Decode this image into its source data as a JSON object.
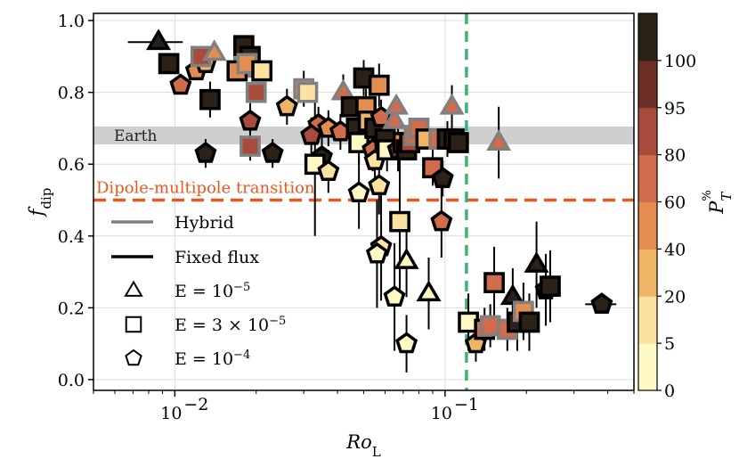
{
  "chart_data": {
    "type": "scatter",
    "xscale": "log",
    "xlim": [
      0.005,
      0.5
    ],
    "ylim": [
      -0.03,
      1.02
    ],
    "xlabel": "Ro_L",
    "ylabel": "f_dip",
    "yticks": [
      0.0,
      0.2,
      0.4,
      0.6,
      0.8,
      1.0
    ],
    "ytick_labels": [
      "0.0",
      "0.2",
      "0.4",
      "0.6",
      "0.8",
      "1.0"
    ],
    "xticks": [
      0.01,
      0.1
    ],
    "xtick_labels": [
      {
        "base": "10",
        "exp": "−2"
      },
      {
        "base": "10",
        "exp": "−1"
      }
    ],
    "grid": true,
    "annotations": {
      "earth_band": {
        "label": "Earth",
        "y_range": [
          0.655,
          0.705
        ]
      },
      "transition": {
        "label": "Dipole-multipole transition",
        "y": 0.5,
        "color": "#e8571e"
      },
      "vertical_line": {
        "x": 0.12,
        "color": "#3cb371"
      }
    },
    "colorbar": {
      "label": "P_T^%",
      "ticks": [
        "0",
        "5",
        "20",
        "40",
        "60",
        "80",
        "95",
        "100"
      ],
      "colors": [
        "#fff9c6",
        "#fce2a0",
        "#f0b466",
        "#e38e50",
        "#d06c4b",
        "#a84a3c",
        "#6d2f27",
        "#2b2117"
      ]
    },
    "legend": {
      "items": [
        {
          "label": "Hybrid",
          "kind": "line",
          "color": "#808080"
        },
        {
          "label": "Fixed flux",
          "kind": "line",
          "color": "#000000"
        },
        {
          "label": "E = 10^−5",
          "kind": "triangle"
        },
        {
          "label": "E = 3 × 10^−5",
          "kind": "square"
        },
        {
          "label": "E = 10^−4",
          "kind": "pentagon"
        }
      ]
    },
    "points": [
      {
        "x": 0.0087,
        "y": 0.94,
        "m": "t",
        "c": 7,
        "e": "k",
        "xe": 0.002,
        "ye": 0.02
      },
      {
        "x": 0.0095,
        "y": 0.88,
        "m": "s",
        "c": 7,
        "e": "k"
      },
      {
        "x": 0.012,
        "y": 0.86,
        "m": "p",
        "c": 3,
        "e": "k"
      },
      {
        "x": 0.013,
        "y": 0.88,
        "m": "p",
        "c": 2,
        "e": "k"
      },
      {
        "x": 0.0125,
        "y": 0.9,
        "m": "s",
        "c": 5,
        "e": "g"
      },
      {
        "x": 0.014,
        "y": 0.91,
        "m": "t",
        "c": 3,
        "e": "g"
      },
      {
        "x": 0.0105,
        "y": 0.82,
        "m": "p",
        "c": 4,
        "e": "k"
      },
      {
        "x": 0.0135,
        "y": 0.78,
        "m": "s",
        "c": 7,
        "e": "k",
        "ye": 0.05
      },
      {
        "x": 0.013,
        "y": 0.63,
        "m": "p",
        "c": 7,
        "e": "k",
        "ye": 0.04
      },
      {
        "x": 0.018,
        "y": 0.93,
        "m": "s",
        "c": 7,
        "e": "k"
      },
      {
        "x": 0.019,
        "y": 0.9,
        "m": "s",
        "c": 7,
        "e": "k"
      },
      {
        "x": 0.018,
        "y": 0.87,
        "m": "s",
        "c": 4,
        "e": "g"
      },
      {
        "x": 0.017,
        "y": 0.86,
        "m": "s",
        "c": 3,
        "e": "k"
      },
      {
        "x": 0.0185,
        "y": 0.88,
        "m": "s",
        "c": 3,
        "e": "g"
      },
      {
        "x": 0.021,
        "y": 0.86,
        "m": "s",
        "c": 1,
        "e": "k"
      },
      {
        "x": 0.02,
        "y": 0.8,
        "m": "s",
        "c": 5,
        "e": "g"
      },
      {
        "x": 0.019,
        "y": 0.72,
        "m": "p",
        "c": 5,
        "e": "k",
        "ye": 0.05
      },
      {
        "x": 0.019,
        "y": 0.65,
        "m": "s",
        "c": 5,
        "e": "g",
        "ye": 0.04
      },
      {
        "x": 0.023,
        "y": 0.63,
        "m": "p",
        "c": 7,
        "e": "k",
        "ye": 0.04
      },
      {
        "x": 0.026,
        "y": 0.76,
        "m": "p",
        "c": 2,
        "e": "k",
        "ye": 0.05
      },
      {
        "x": 0.03,
        "y": 0.81,
        "m": "s",
        "c": 3,
        "e": "g",
        "ye": 0.05
      },
      {
        "x": 0.031,
        "y": 0.8,
        "m": "s",
        "c": 1,
        "e": "g"
      },
      {
        "x": 0.034,
        "y": 0.71,
        "m": "p",
        "c": 4,
        "e": "k",
        "ye": 0.05
      },
      {
        "x": 0.032,
        "y": 0.68,
        "m": "p",
        "c": 5,
        "e": "k",
        "ye": 0.05
      },
      {
        "x": 0.037,
        "y": 0.7,
        "m": "p",
        "c": 3,
        "e": "k",
        "ye": 0.05
      },
      {
        "x": 0.035,
        "y": 0.62,
        "m": "p",
        "c": 7,
        "e": "k",
        "ye": 0.06
      },
      {
        "x": 0.033,
        "y": 0.6,
        "m": "s",
        "c": 0,
        "e": "k",
        "ye": 0.2
      },
      {
        "x": 0.037,
        "y": 0.58,
        "m": "p",
        "c": 1,
        "e": "k",
        "ye": 0.06
      },
      {
        "x": 0.041,
        "y": 0.69,
        "m": "p",
        "c": 4,
        "e": "k",
        "ye": 0.05
      },
      {
        "x": 0.042,
        "y": 0.8,
        "m": "t",
        "c": 4,
        "e": "g",
        "ye": 0.05
      },
      {
        "x": 0.045,
        "y": 0.76,
        "m": "s",
        "c": 7,
        "e": "k"
      },
      {
        "x": 0.047,
        "y": 0.7,
        "m": "s",
        "c": 7,
        "e": "k"
      },
      {
        "x": 0.048,
        "y": 0.66,
        "m": "s",
        "c": 0,
        "e": "k",
        "ye": 0.06
      },
      {
        "x": 0.05,
        "y": 0.84,
        "m": "s",
        "c": 7,
        "e": "k",
        "ye": 0.05
      },
      {
        "x": 0.051,
        "y": 0.76,
        "m": "s",
        "c": 3,
        "e": "k",
        "ye": 0.05
      },
      {
        "x": 0.052,
        "y": 0.72,
        "m": "s",
        "c": 2,
        "e": "k",
        "ye": 0.06
      },
      {
        "x": 0.055,
        "y": 0.7,
        "m": "s",
        "c": 7,
        "e": "k",
        "ye": 0.05
      },
      {
        "x": 0.057,
        "y": 0.82,
        "m": "s",
        "c": 3,
        "e": "k",
        "ye": 0.06
      },
      {
        "x": 0.058,
        "y": 0.73,
        "m": "p",
        "c": 4,
        "e": "k",
        "ye": 0.05
      },
      {
        "x": 0.054,
        "y": 0.64,
        "m": "p",
        "c": 4,
        "e": "k",
        "ye": 0.06
      },
      {
        "x": 0.055,
        "y": 0.61,
        "m": "p",
        "c": 1,
        "e": "k",
        "ye": 0.08
      },
      {
        "x": 0.048,
        "y": 0.52,
        "m": "p",
        "c": 0,
        "e": "k",
        "ye": 0.1
      },
      {
        "x": 0.057,
        "y": 0.54,
        "m": "p",
        "c": 1,
        "e": "k",
        "ye": 0.08
      },
      {
        "x": 0.06,
        "y": 0.67,
        "m": "s",
        "c": 7,
        "e": "k",
        "ye": 0.05
      },
      {
        "x": 0.061,
        "y": 0.64,
        "m": "s",
        "c": 0,
        "e": "k",
        "ye": 0.06
      },
      {
        "x": 0.065,
        "y": 0.72,
        "m": "t",
        "c": 4,
        "e": "g",
        "ye": 0.05
      },
      {
        "x": 0.066,
        "y": 0.76,
        "m": "t",
        "c": 4,
        "e": "g"
      },
      {
        "x": 0.067,
        "y": 0.64,
        "m": "p",
        "c": 6,
        "e": "k",
        "ye": 0.06
      },
      {
        "x": 0.07,
        "y": 0.66,
        "m": "s",
        "c": 3,
        "e": "k"
      },
      {
        "x": 0.072,
        "y": 0.64,
        "m": "s",
        "c": 7,
        "e": "k"
      },
      {
        "x": 0.074,
        "y": 0.66,
        "m": "s",
        "c": 5,
        "e": "k"
      },
      {
        "x": 0.077,
        "y": 0.68,
        "m": "s",
        "c": 4,
        "e": "g"
      },
      {
        "x": 0.08,
        "y": 0.7,
        "m": "s",
        "c": 4,
        "e": "g"
      },
      {
        "x": 0.085,
        "y": 0.67,
        "m": "s",
        "c": 2,
        "e": "k"
      },
      {
        "x": 0.09,
        "y": 0.59,
        "m": "s",
        "c": 4,
        "e": "k",
        "ye": 0.05
      },
      {
        "x": 0.095,
        "y": 0.67,
        "m": "s",
        "c": 4,
        "e": "g"
      },
      {
        "x": 0.098,
        "y": 0.56,
        "m": "p",
        "c": 7,
        "e": "k",
        "ye": 0.05
      },
      {
        "x": 0.102,
        "y": 0.67,
        "m": "s",
        "c": 7,
        "e": "k",
        "ye": 0.05
      },
      {
        "x": 0.106,
        "y": 0.76,
        "m": "t",
        "c": 4,
        "e": "g",
        "ye": 0.06
      },
      {
        "x": 0.108,
        "y": 0.67,
        "m": "s",
        "c": 7,
        "e": "k"
      },
      {
        "x": 0.112,
        "y": 0.66,
        "m": "s",
        "c": 7,
        "e": "k"
      },
      {
        "x": 0.097,
        "y": 0.44,
        "m": "p",
        "c": 4,
        "e": "k",
        "ye": 0.1
      },
      {
        "x": 0.068,
        "y": 0.44,
        "m": "s",
        "c": 1,
        "e": "k",
        "ye": 0.2
      },
      {
        "x": 0.058,
        "y": 0.37,
        "m": "p",
        "c": 1,
        "e": "k",
        "ye": 0.15
      },
      {
        "x": 0.056,
        "y": 0.35,
        "m": "p",
        "c": 0,
        "e": "k",
        "ye": 0.15
      },
      {
        "x": 0.072,
        "y": 0.33,
        "m": "t",
        "c": 0,
        "e": "k",
        "ye": 0.1
      },
      {
        "x": 0.065,
        "y": 0.23,
        "m": "p",
        "c": 0,
        "e": "k",
        "ye": 0.15
      },
      {
        "x": 0.087,
        "y": 0.24,
        "m": "t",
        "c": 0,
        "e": "k",
        "ye": 0.1
      },
      {
        "x": 0.072,
        "y": 0.1,
        "m": "p",
        "c": 0,
        "e": "k",
        "ye": 0.08
      },
      {
        "x": 0.122,
        "y": 0.16,
        "m": "s",
        "c": 0,
        "e": "k",
        "ye": 0.08
      },
      {
        "x": 0.13,
        "y": 0.1,
        "m": "p",
        "c": 2,
        "e": "k",
        "ye": 0.05
      },
      {
        "x": 0.14,
        "y": 0.14,
        "m": "s",
        "c": 4,
        "e": "k",
        "ye": 0.06
      },
      {
        "x": 0.147,
        "y": 0.15,
        "m": "s",
        "c": 4,
        "e": "g",
        "ye": 0.06
      },
      {
        "x": 0.152,
        "y": 0.27,
        "m": "s",
        "c": 4,
        "e": "k",
        "ye": 0.1
      },
      {
        "x": 0.158,
        "y": 0.66,
        "m": "t",
        "c": 4,
        "e": "g",
        "ye": 0.1
      },
      {
        "x": 0.17,
        "y": 0.14,
        "m": "s",
        "c": 4,
        "e": "g",
        "ye": 0.06
      },
      {
        "x": 0.178,
        "y": 0.23,
        "m": "t",
        "c": 7,
        "e": "k",
        "ye": 0.08
      },
      {
        "x": 0.185,
        "y": 0.16,
        "m": "s",
        "c": 7,
        "e": "k",
        "ye": 0.08
      },
      {
        "x": 0.195,
        "y": 0.19,
        "m": "s",
        "c": 3,
        "e": "g",
        "ye": 0.08
      },
      {
        "x": 0.205,
        "y": 0.16,
        "m": "s",
        "c": 7,
        "e": "k",
        "ye": 0.08
      },
      {
        "x": 0.218,
        "y": 0.32,
        "m": "t",
        "c": 7,
        "e": "k",
        "ye": 0.12
      },
      {
        "x": 0.236,
        "y": 0.25,
        "m": "p",
        "c": 7,
        "e": "k",
        "ye": 0.1
      },
      {
        "x": 0.245,
        "y": 0.26,
        "m": "s",
        "c": 7,
        "e": "k",
        "ye": 0.1
      },
      {
        "x": 0.38,
        "y": 0.21,
        "m": "p",
        "c": 7,
        "e": "k",
        "xe": 0.05
      }
    ]
  }
}
